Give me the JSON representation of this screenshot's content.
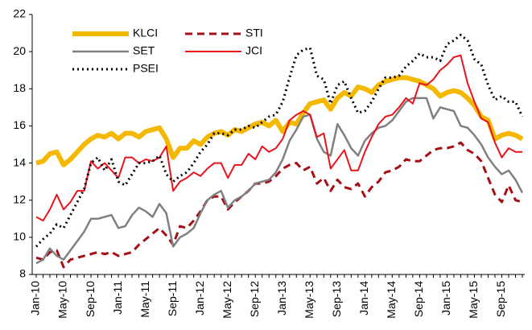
{
  "chart_data": {
    "type": "line",
    "categories": [
      "Jan-10",
      null,
      null,
      null,
      "May-10",
      null,
      null,
      null,
      "Sep-10",
      null,
      null,
      null,
      "Jan-11",
      null,
      null,
      null,
      "May-11",
      null,
      null,
      null,
      "Sep-11",
      null,
      null,
      null,
      "Jan-12",
      null,
      null,
      null,
      "May-12",
      null,
      null,
      null,
      "Sep-12",
      null,
      null,
      null,
      "Jan-13",
      null,
      null,
      null,
      "May-13",
      null,
      null,
      null,
      "Sep-13",
      null,
      null,
      null,
      "Jan-14",
      null,
      null,
      null,
      "May-14",
      null,
      null,
      null,
      "Sep-14",
      null,
      null,
      null,
      "Jan-15",
      null,
      null,
      null,
      "May-15",
      null,
      null,
      null,
      "Sep-15",
      null,
      null,
      null
    ],
    "ylim": [
      8,
      22
    ],
    "yticks": [
      8,
      10,
      12,
      14,
      16,
      18,
      20,
      22
    ],
    "grid": false,
    "legend": "upper left",
    "series": [
      {
        "name": "KLCI",
        "color": "#f5b800",
        "width": 6,
        "dash": "solid",
        "values": [
          14.0,
          14.1,
          14.5,
          14.6,
          13.9,
          14.2,
          14.6,
          15.0,
          15.3,
          15.5,
          15.4,
          15.6,
          15.3,
          15.6,
          15.6,
          15.4,
          15.7,
          15.8,
          15.9,
          15.3,
          14.3,
          14.8,
          14.8,
          15.2,
          15.0,
          15.4,
          15.6,
          15.7,
          15.5,
          15.8,
          15.7,
          15.9,
          16.1,
          16.2,
          16.0,
          16.3,
          15.7,
          16.2,
          16.1,
          16.7,
          17.2,
          17.3,
          17.4,
          16.9,
          17.5,
          17.8,
          17.6,
          18.1,
          18.0,
          17.8,
          18.2,
          18.4,
          18.5,
          18.6,
          18.6,
          18.5,
          18.4,
          18.2,
          18.0,
          17.6,
          17.8,
          17.9,
          17.8,
          17.5,
          17.1,
          16.5,
          16.3,
          15.3,
          15.5,
          15.6,
          15.5,
          15.3
        ]
      },
      {
        "name": "STI",
        "color": "#a50f15",
        "width": 3,
        "dash": "dashed",
        "values": [
          8.9,
          8.8,
          9.2,
          9.3,
          8.4,
          8.8,
          8.9,
          9.0,
          9.1,
          9.2,
          9.1,
          9.2,
          9.0,
          9.1,
          9.2,
          9.6,
          9.9,
          10.2,
          10.5,
          10.1,
          9.6,
          10.6,
          10.5,
          10.9,
          11.4,
          12.0,
          12.2,
          12.2,
          11.5,
          11.9,
          12.2,
          12.5,
          12.9,
          12.9,
          13.0,
          13.3,
          13.7,
          13.9,
          14.0,
          13.6,
          13.8,
          12.9,
          13.2,
          12.5,
          13.1,
          12.7,
          12.6,
          12.9,
          12.2,
          12.7,
          13.0,
          13.5,
          13.6,
          13.8,
          14.2,
          14.1,
          14.1,
          14.4,
          14.7,
          14.8,
          14.8,
          14.9,
          15.1,
          14.7,
          14.5,
          14.1,
          13.2,
          12.3,
          11.9,
          12.8,
          12.0,
          11.9
        ]
      },
      {
        "name": "SET",
        "color": "#808080",
        "width": 2.5,
        "dash": "solid",
        "values": [
          8.6,
          8.8,
          9.4,
          9.0,
          8.8,
          9.3,
          9.8,
          10.3,
          11.0,
          11.0,
          11.1,
          11.2,
          10.5,
          10.6,
          11.2,
          11.6,
          11.4,
          11.1,
          11.8,
          11.3,
          9.5,
          10.0,
          10.2,
          10.5,
          11.3,
          12.0,
          12.3,
          12.5,
          11.6,
          12.0,
          12.2,
          12.5,
          12.9,
          13.0,
          13.1,
          13.5,
          14.2,
          15.2,
          15.8,
          16.5,
          16.6,
          15.3,
          14.6,
          14.4,
          16.1,
          15.5,
          14.8,
          14.4,
          15.2,
          15.6,
          15.9,
          16.0,
          16.3,
          16.8,
          17.3,
          17.5,
          17.5,
          17.5,
          16.4,
          17.0,
          16.9,
          16.8,
          16.0,
          15.9,
          15.5,
          15.0,
          14.3,
          13.8,
          13.4,
          13.6,
          13.1,
          12.4
        ]
      },
      {
        "name": "JCI",
        "color": "#e8141c",
        "width": 2,
        "dash": "solid",
        "values": [
          11.1,
          10.9,
          11.5,
          12.3,
          11.5,
          11.9,
          12.5,
          12.5,
          14.1,
          13.7,
          14.0,
          13.6,
          13.2,
          14.3,
          14.3,
          14.0,
          14.2,
          14.1,
          14.3,
          14.9,
          12.5,
          13.0,
          13.2,
          13.5,
          13.3,
          13.7,
          14.0,
          14.0,
          13.2,
          13.9,
          13.9,
          14.5,
          14.2,
          14.9,
          14.6,
          14.8,
          15.3,
          16.3,
          16.6,
          16.8,
          16.6,
          15.4,
          15.6,
          13.7,
          14.2,
          14.7,
          13.6,
          13.6,
          14.6,
          15.4,
          16.1,
          16.5,
          16.6,
          17.0,
          17.5,
          17.2,
          18.3,
          18.2,
          18.5,
          19.0,
          19.3,
          19.7,
          19.8,
          18.3,
          17.3,
          16.4,
          16.2,
          15.1,
          14.3,
          14.8,
          14.6,
          14.6
        ]
      },
      {
        "name": "PSEI",
        "color": "#000000",
        "width": 3,
        "dash": "dotted",
        "values": [
          9.5,
          9.9,
          10.2,
          10.7,
          10.5,
          11.2,
          11.9,
          12.6,
          14.0,
          14.3,
          13.6,
          14.2,
          13.0,
          12.8,
          13.4,
          14.0,
          14.0,
          14.1,
          14.4,
          13.4,
          13.0,
          13.3,
          13.5,
          14.0,
          14.6,
          15.0,
          15.6,
          15.6,
          15.5,
          15.8,
          15.8,
          16.0,
          15.9,
          16.2,
          16.5,
          16.6,
          17.3,
          18.6,
          19.8,
          20.1,
          20.2,
          18.7,
          18.5,
          17.2,
          18.2,
          18.4,
          17.5,
          16.7,
          16.8,
          17.3,
          18.0,
          18.6,
          18.6,
          18.7,
          19.2,
          19.5,
          19.9,
          19.7,
          19.7,
          19.5,
          20.4,
          20.6,
          20.9,
          20.6,
          19.6,
          19.3,
          18.2,
          17.4,
          17.6,
          17.3,
          17.3,
          16.5
        ]
      }
    ]
  }
}
